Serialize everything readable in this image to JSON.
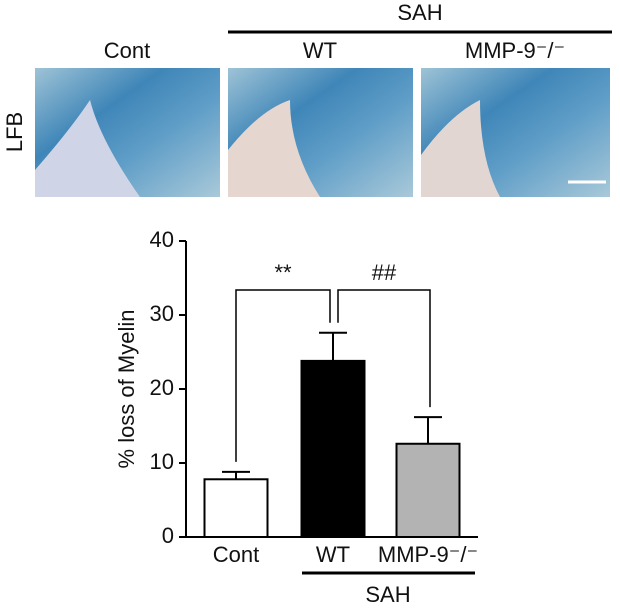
{
  "images": {
    "group_label": "SAH",
    "stain": "LFB",
    "labels": [
      "Cont",
      "WT",
      "MMP-9⁻/⁻"
    ]
  },
  "chart_data": {
    "type": "bar",
    "ylabel": "% loss of Myelin",
    "categories": [
      "Cont",
      "WT",
      "MMP-9⁻/⁻"
    ],
    "values": [
      7.8,
      23.8,
      12.6
    ],
    "errors": [
      1.0,
      3.8,
      3.6
    ],
    "colors": [
      "#ffffff",
      "#000000",
      "#b3b3b3"
    ],
    "ylim": [
      0,
      40
    ],
    "yticks": [
      0,
      10,
      20,
      30,
      40
    ],
    "annotations": [
      "**",
      "##"
    ],
    "group_label": "SAH"
  }
}
